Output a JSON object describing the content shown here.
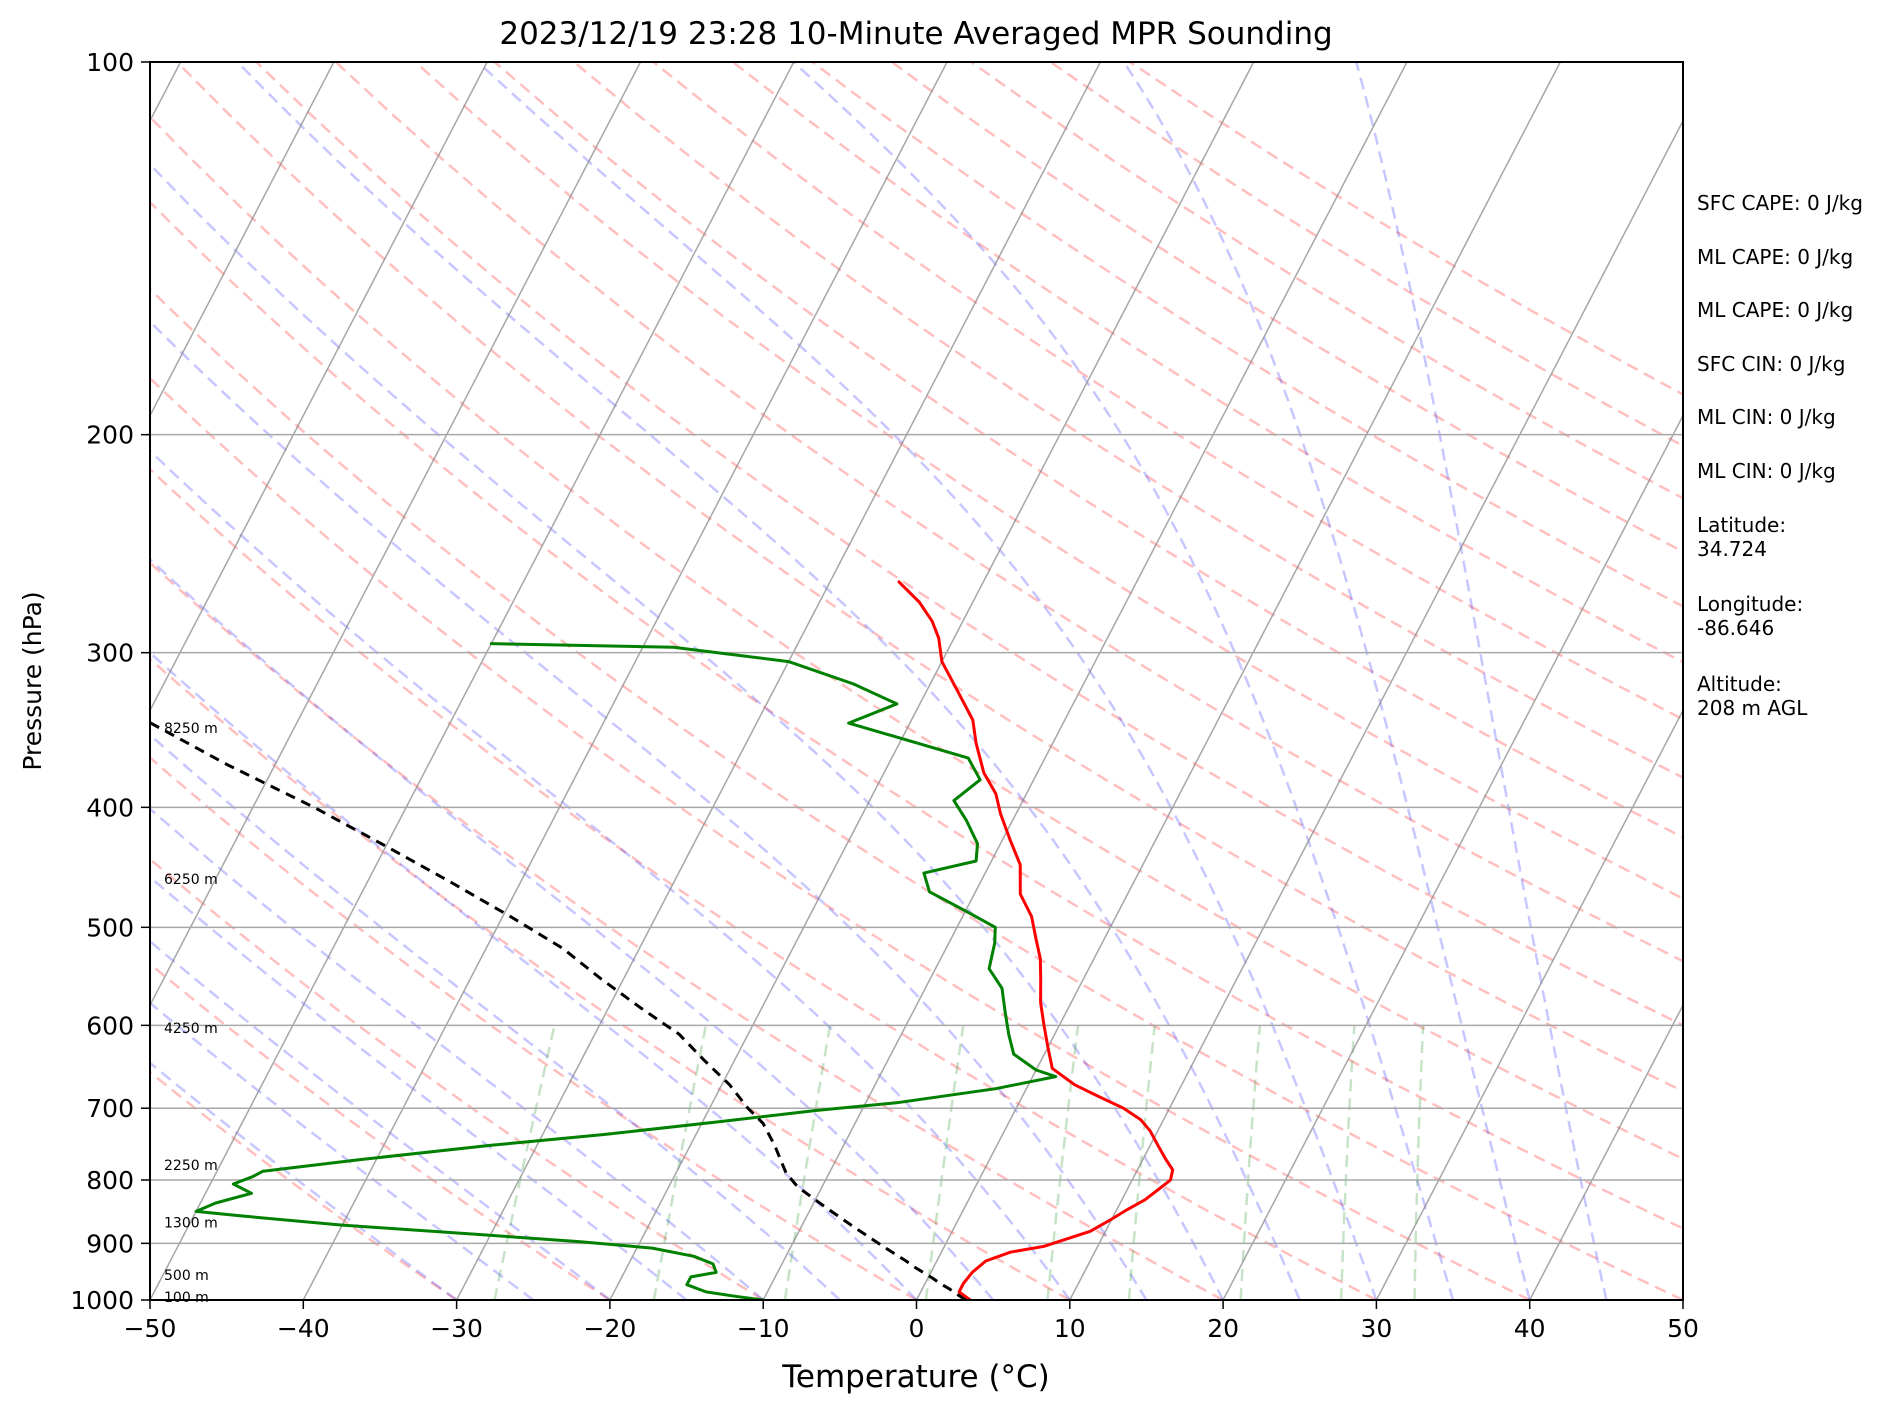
{
  "chart_data": {
    "type": "line",
    "title": "2023/12/19 23:28 10-Minute Averaged MPR Sounding",
    "xlabel": "Temperature (°C)",
    "ylabel": "Pressure (hPa)",
    "xlim": [
      -50,
      50
    ],
    "ylim": [
      1000,
      100
    ],
    "y_scale": "log",
    "skew": "skew-T log-P",
    "x_ticks": [
      -50,
      -40,
      -30,
      -20,
      -10,
      0,
      10,
      20,
      30,
      40,
      50
    ],
    "x_tick_labels": [
      "−50",
      "−40",
      "−30",
      "−20",
      "−10",
      "0",
      "10",
      "20",
      "30",
      "40",
      "50"
    ],
    "y_ticks": [
      1000,
      900,
      800,
      700,
      600,
      500,
      400,
      300,
      200,
      100
    ],
    "y_tick_labels": [
      "1000",
      "900",
      "800",
      "700",
      "600",
      "500",
      "400",
      "300",
      "200",
      "100"
    ],
    "grid": true,
    "height_labels": [
      {
        "text": "8250 m",
        "p": 345
      },
      {
        "text": "6250 m",
        "p": 457
      },
      {
        "text": "4250 m",
        "p": 603
      },
      {
        "text": "2250 m",
        "p": 778
      },
      {
        "text": "1300 m",
        "p": 866
      },
      {
        "text": "500 m",
        "p": 955
      },
      {
        "text": "100 m",
        "p": 994
      }
    ],
    "series": [
      {
        "role": "temperature",
        "color": "#ff0000",
        "points": [
          [
            3.5,
            1000
          ],
          [
            2.5,
            985
          ],
          [
            2.5,
            970
          ],
          [
            2.7,
            950
          ],
          [
            3.2,
            930
          ],
          [
            4.5,
            915
          ],
          [
            6.5,
            905
          ],
          [
            9.0,
            880
          ],
          [
            10.0,
            860
          ],
          [
            10.7,
            845
          ],
          [
            11.5,
            830
          ],
          [
            12.0,
            815
          ],
          [
            12.5,
            800
          ],
          [
            12.3,
            785
          ],
          [
            11.5,
            770
          ],
          [
            10.5,
            750
          ],
          [
            9.5,
            730
          ],
          [
            8.5,
            715
          ],
          [
            7.0,
            700
          ],
          [
            5.0,
            685
          ],
          [
            3.0,
            670
          ],
          [
            1.0,
            650
          ],
          [
            0.0,
            625
          ],
          [
            -1.0,
            600
          ],
          [
            -2.0,
            575
          ],
          [
            -2.8,
            550
          ],
          [
            -3.5,
            530
          ],
          [
            -4.5,
            510
          ],
          [
            -5.5,
            490
          ],
          [
            -7.0,
            470
          ],
          [
            -8.0,
            445
          ],
          [
            -9.5,
            425
          ],
          [
            -11.0,
            405
          ],
          [
            -12.0,
            390
          ],
          [
            -13.5,
            375
          ],
          [
            -15.0,
            355
          ],
          [
            -16.0,
            340
          ],
          [
            -18.0,
            322
          ],
          [
            -20.0,
            305
          ],
          [
            -21.0,
            292
          ],
          [
            -22.0,
            283
          ],
          [
            -23.5,
            273
          ],
          [
            -25.5,
            263
          ]
        ]
      },
      {
        "role": "dewpoint",
        "color": "#008000",
        "points": [
          [
            -10,
            1000
          ],
          [
            -12,
            993
          ],
          [
            -14,
            985
          ],
          [
            -15.5,
            972
          ],
          [
            -15.5,
            958
          ],
          [
            -14.0,
            950
          ],
          [
            -14.5,
            935
          ],
          [
            -16.0,
            922
          ],
          [
            -19.0,
            908
          ],
          [
            -24.0,
            897
          ],
          [
            -31.0,
            885
          ],
          [
            -40.0,
            870
          ],
          [
            -47.0,
            855
          ],
          [
            -50.0,
            848
          ],
          [
            -49.0,
            835
          ],
          [
            -47.0,
            820
          ],
          [
            -48.5,
            806
          ],
          [
            -47.5,
            795
          ],
          [
            -47.0,
            787
          ],
          [
            -41.0,
            770
          ],
          [
            -33.0,
            750
          ],
          [
            -26.0,
            735
          ],
          [
            -19.0,
            718
          ],
          [
            -13.0,
            703
          ],
          [
            -8.0,
            693
          ],
          [
            -2.0,
            675
          ],
          [
            1.5,
            660
          ],
          [
            0.0,
            652
          ],
          [
            -2.0,
            633
          ],
          [
            -3.0,
            610
          ],
          [
            -4.0,
            585
          ],
          [
            -5.0,
            560
          ],
          [
            -6.5,
            540
          ],
          [
            -7.0,
            515
          ],
          [
            -7.5,
            500
          ],
          [
            -10.0,
            485
          ],
          [
            -13.0,
            468
          ],
          [
            -14.0,
            452
          ],
          [
            -11.0,
            442
          ],
          [
            -11.5,
            428
          ],
          [
            -13.0,
            410
          ],
          [
            -14.5,
            395
          ],
          [
            -13.5,
            380
          ],
          [
            -15.0,
            365
          ],
          [
            -20.0,
            352
          ],
          [
            -24.0,
            342
          ],
          [
            -21.5,
            330
          ],
          [
            -25.0,
            318
          ],
          [
            -30.0,
            305
          ],
          [
            -38.0,
            297
          ],
          [
            -50.0,
            295
          ]
        ]
      },
      {
        "role": "parcel",
        "color": "#000000",
        "style": "dashed",
        "points": [
          [
            3.2,
            1000
          ],
          [
            2.5,
            990
          ],
          [
            1.8,
            980
          ],
          [
            1.0,
            970
          ],
          [
            0.3,
            960
          ],
          [
            -0.5,
            950
          ],
          [
            -1.3,
            940
          ],
          [
            -2.0,
            930
          ],
          [
            -2.8,
            920
          ],
          [
            -3.6,
            910
          ],
          [
            -4.4,
            900
          ],
          [
            -5.2,
            890
          ],
          [
            -6.0,
            880
          ],
          [
            -6.8,
            870
          ],
          [
            -7.6,
            860
          ],
          [
            -8.4,
            850
          ],
          [
            -9.2,
            840
          ],
          [
            -10.0,
            830
          ],
          [
            -10.8,
            820
          ],
          [
            -11.6,
            810
          ],
          [
            -12.8,
            790
          ],
          [
            -14.5,
            750
          ],
          [
            -16.0,
            720
          ],
          [
            -17.5,
            700
          ],
          [
            -19.5,
            670
          ],
          [
            -22.0,
            640
          ],
          [
            -24.5,
            610
          ],
          [
            -28.0,
            580
          ],
          [
            -31.5,
            550
          ],
          [
            -35.0,
            520
          ],
          [
            -39.5,
            490
          ],
          [
            -44.5,
            460
          ],
          [
            -50.0,
            430
          ],
          [
            -56.0,
            400
          ],
          [
            -63.0,
            370
          ],
          [
            -70.0,
            340
          ],
          [
            -78.0,
            310
          ],
          [
            -81.0,
            300
          ],
          [
            -84.0,
            293
          ]
        ]
      }
    ]
  },
  "side_panel": {
    "sfc_cape": "SFC CAPE: 0 J/kg",
    "ml_cape_1": "ML CAPE: 0 J/kg",
    "ml_cape_2": "ML CAPE: 0 J/kg",
    "sfc_cin": "SFC CIN: 0 J/kg",
    "ml_cin_1": "ML CIN: 0 J/kg",
    "ml_cin_2": "ML CIN: 0 J/kg",
    "latitude": "Latitude:\n34.724",
    "longitude": "Longitude:\n-86.646",
    "altitude": "Altitude:\n208 m AGL"
  }
}
